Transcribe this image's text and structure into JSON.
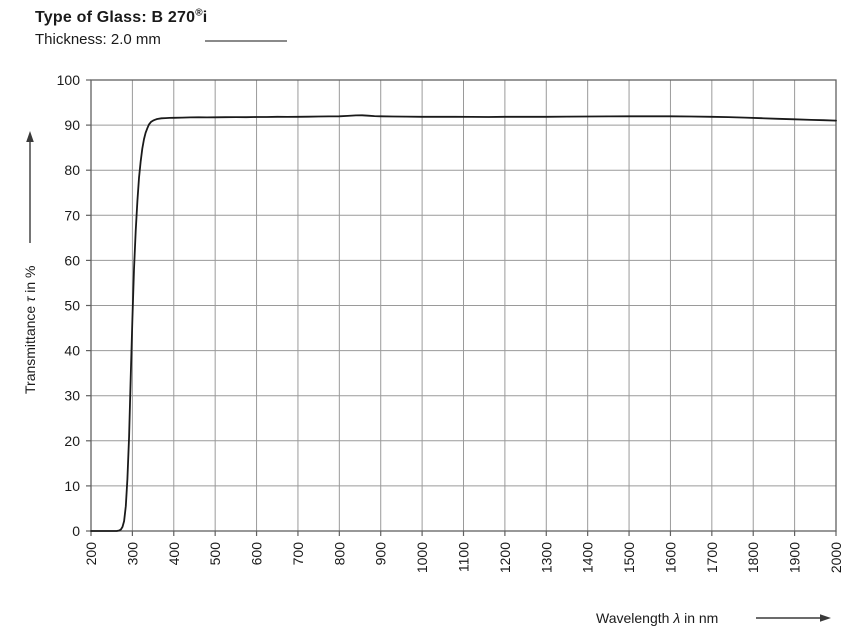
{
  "header": {
    "title_prefix": "Type of Glass: B 270",
    "title_reg": "®",
    "title_suffix": "i",
    "thickness_label": "Thickness: 2.0 mm"
  },
  "chart_data": {
    "type": "line",
    "title": "Type of Glass: B 270®i",
    "subtitle": "Thickness: 2.0 mm",
    "xlabel": "Wavelength λ in nm",
    "xlabel_prefix": "Wavelength ",
    "xlabel_symbol": "λ",
    "xlabel_suffix": " in nm",
    "ylabel": "Transmittance τ in %",
    "ylabel_prefix": "Transmittance ",
    "ylabel_symbol": "τ",
    "ylabel_suffix": " in %",
    "xlim": [
      200,
      2000
    ],
    "ylim": [
      0,
      100
    ],
    "x_ticks": [
      200,
      300,
      400,
      500,
      600,
      700,
      800,
      900,
      1000,
      1100,
      1200,
      1300,
      1400,
      1500,
      1600,
      1700,
      1800,
      1900,
      2000
    ],
    "y_ticks": [
      0,
      10,
      20,
      30,
      40,
      50,
      60,
      70,
      80,
      90,
      100
    ],
    "grid": true,
    "legend_position": "top-left",
    "series": [
      {
        "name": "B 270®i, 2.0 mm",
        "points": [
          [
            200,
            0
          ],
          [
            215,
            0
          ],
          [
            230,
            0
          ],
          [
            245,
            0
          ],
          [
            255,
            0
          ],
          [
            262,
            0
          ],
          [
            268,
            0.1
          ],
          [
            272,
            0.3
          ],
          [
            276,
            0.9
          ],
          [
            280,
            2.2
          ],
          [
            284,
            5.5
          ],
          [
            288,
            11.5
          ],
          [
            292,
            21
          ],
          [
            296,
            34
          ],
          [
            300,
            47
          ],
          [
            304,
            58
          ],
          [
            308,
            66.5
          ],
          [
            312,
            73.2
          ],
          [
            316,
            78.3
          ],
          [
            320,
            82
          ],
          [
            324,
            84.8
          ],
          [
            328,
            86.9
          ],
          [
            332,
            88.3
          ],
          [
            336,
            89.3
          ],
          [
            340,
            90.1
          ],
          [
            345,
            90.7
          ],
          [
            350,
            91.0
          ],
          [
            355,
            91.2
          ],
          [
            360,
            91.35
          ],
          [
            370,
            91.5
          ],
          [
            380,
            91.55
          ],
          [
            390,
            91.6
          ],
          [
            400,
            91.62
          ],
          [
            420,
            91.66
          ],
          [
            440,
            91.7
          ],
          [
            460,
            91.72
          ],
          [
            480,
            91.7
          ],
          [
            500,
            91.74
          ],
          [
            525,
            91.76
          ],
          [
            550,
            91.78
          ],
          [
            575,
            91.76
          ],
          [
            600,
            91.8
          ],
          [
            625,
            91.8
          ],
          [
            650,
            91.84
          ],
          [
            675,
            91.82
          ],
          [
            700,
            91.85
          ],
          [
            725,
            91.86
          ],
          [
            750,
            91.9
          ],
          [
            775,
            91.92
          ],
          [
            800,
            91.96
          ],
          [
            820,
            92.05
          ],
          [
            840,
            92.15
          ],
          [
            855,
            92.18
          ],
          [
            870,
            92.08
          ],
          [
            885,
            92.0
          ],
          [
            900,
            91.95
          ],
          [
            930,
            91.9
          ],
          [
            960,
            91.88
          ],
          [
            1000,
            91.85
          ],
          [
            1040,
            91.84
          ],
          [
            1080,
            91.84
          ],
          [
            1120,
            91.82
          ],
          [
            1160,
            91.8
          ],
          [
            1200,
            91.84
          ],
          [
            1250,
            91.84
          ],
          [
            1300,
            91.85
          ],
          [
            1350,
            91.88
          ],
          [
            1400,
            91.9
          ],
          [
            1450,
            91.94
          ],
          [
            1500,
            91.95
          ],
          [
            1550,
            91.96
          ],
          [
            1600,
            91.95
          ],
          [
            1650,
            91.9
          ],
          [
            1700,
            91.85
          ],
          [
            1740,
            91.78
          ],
          [
            1780,
            91.66
          ],
          [
            1820,
            91.52
          ],
          [
            1860,
            91.4
          ],
          [
            1900,
            91.28
          ],
          [
            1940,
            91.16
          ],
          [
            1970,
            91.08
          ],
          [
            2000,
            91.0
          ]
        ]
      }
    ],
    "colors": {
      "curve": "#1a1a1a",
      "grid": "#9a9a9a",
      "frame": "#606060",
      "text": "#1a1a1a",
      "legend_line": "#8a8a8a",
      "arrow": "#3a3a3a"
    }
  }
}
